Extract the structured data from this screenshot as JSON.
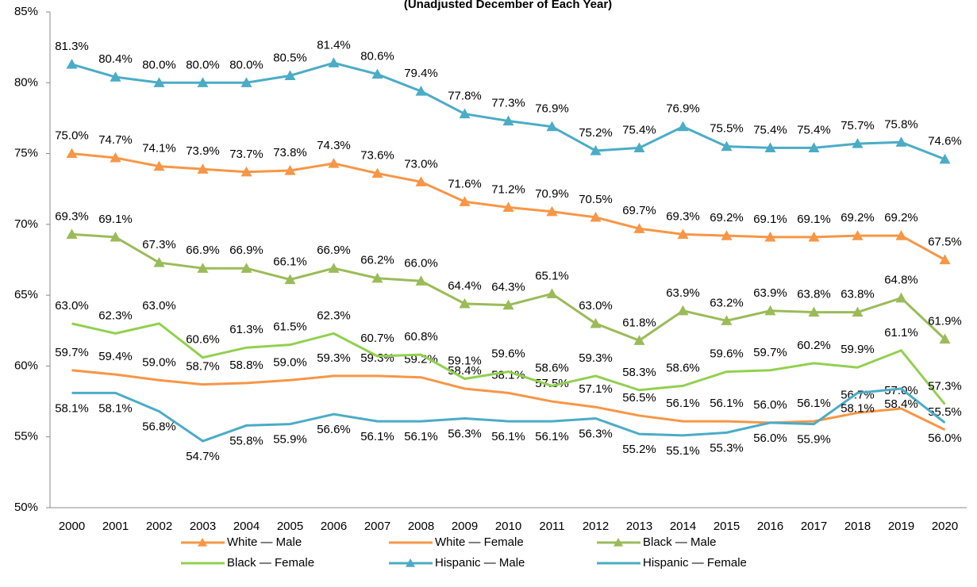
{
  "chart_data": {
    "type": "line",
    "subtitle": "(Unadjusted December of Each Year)",
    "categories": [
      "2000",
      "2001",
      "2002",
      "2003",
      "2004",
      "2005",
      "2006",
      "2007",
      "2008",
      "2009",
      "2010",
      "2011",
      "2012",
      "2013",
      "2014",
      "2015",
      "2016",
      "2017",
      "2018",
      "2019",
      "2020"
    ],
    "ylim": [
      50,
      85
    ],
    "yticks": [
      {
        "value": 50,
        "label": "50%"
      },
      {
        "value": 55,
        "label": "55%"
      },
      {
        "value": 60,
        "label": "60%"
      },
      {
        "value": 65,
        "label": "65%"
      },
      {
        "value": 70,
        "label": "70%"
      },
      {
        "value": 75,
        "label": "75%"
      },
      {
        "value": 80,
        "label": "80%"
      },
      {
        "value": 85,
        "label": "85%"
      }
    ],
    "grid": false,
    "series": [
      {
        "name": "White — Male",
        "color": "#F79646",
        "marker": "triangle",
        "values": [
          75.0,
          74.7,
          74.1,
          73.9,
          73.7,
          73.8,
          74.3,
          73.6,
          73.0,
          71.6,
          71.2,
          70.9,
          70.5,
          69.7,
          69.3,
          69.2,
          69.1,
          69.1,
          69.2,
          69.2,
          67.5
        ],
        "value_labels": [
          "75.0%",
          "74.7%",
          "74.1%",
          "73.9%",
          "73.7%",
          "73.8%",
          "74.3%",
          "73.6%",
          "73.0%",
          "71.6%",
          "71.2%",
          "70.9%",
          "70.5%",
          "69.7%",
          "69.3%",
          "69.2%",
          "69.1%",
          "69.1%",
          "69.2%",
          "69.2%",
          "67.5%"
        ]
      },
      {
        "name": "White — Female",
        "color": "#F79646",
        "marker": "none",
        "values": [
          59.7,
          59.4,
          59.0,
          58.7,
          58.8,
          59.0,
          59.3,
          59.3,
          59.2,
          58.4,
          58.1,
          57.5,
          57.1,
          56.5,
          56.1,
          56.1,
          56.0,
          56.1,
          56.7,
          57.0,
          55.5
        ],
        "value_labels": [
          "59.7%",
          "59.4%",
          "59.0%",
          "58.7%",
          "58.8%",
          "59.0%",
          "59.3%",
          "59.3%",
          "59.2%",
          "58.4%",
          "58.1%",
          "57.5%",
          "57.1%",
          "56.5%",
          "56.1%",
          "56.1%",
          "56.0%",
          "56.1%",
          "56.7%",
          "57.0%",
          "55.5%"
        ]
      },
      {
        "name": "Black — Male",
        "color": "#9BBB59",
        "marker": "triangle",
        "values": [
          69.3,
          69.1,
          67.3,
          66.9,
          66.9,
          66.1,
          66.9,
          66.2,
          66.0,
          64.4,
          64.3,
          65.1,
          63.0,
          61.8,
          63.9,
          63.2,
          63.9,
          63.8,
          63.8,
          64.8,
          61.9
        ],
        "value_labels": [
          "69.3%",
          "69.1%",
          "67.3%",
          "66.9%",
          "66.9%",
          "66.1%",
          "66.9%",
          "66.2%",
          "66.0%",
          "64.4%",
          "64.3%",
          "65.1%",
          "63.0%",
          "61.8%",
          "63.9%",
          "63.2%",
          "63.9%",
          "63.8%",
          "63.8%",
          "64.8%",
          "61.9%"
        ]
      },
      {
        "name": "Black — Female",
        "color": "#92D050",
        "marker": "none",
        "values": [
          63.0,
          62.3,
          63.0,
          60.6,
          61.3,
          61.5,
          62.3,
          60.7,
          60.8,
          59.1,
          59.6,
          58.6,
          59.3,
          58.3,
          58.6,
          59.6,
          59.7,
          60.2,
          59.9,
          61.1,
          57.3
        ],
        "value_labels": [
          "63.0%",
          "62.3%",
          "63.0%",
          "60.6%",
          "61.3%",
          "61.5%",
          "62.3%",
          "60.7%",
          "60.8%",
          "59.1%",
          "59.6%",
          "58.6%",
          "59.3%",
          "58.3%",
          "58.6%",
          "59.6%",
          "59.7%",
          "60.2%",
          "59.9%",
          "61.1%",
          "57.3%"
        ]
      },
      {
        "name": "Hispanic — Male",
        "color": "#4BACC6",
        "marker": "triangle",
        "values": [
          81.3,
          80.4,
          80.0,
          80.0,
          80.0,
          80.5,
          81.4,
          80.6,
          79.4,
          77.8,
          77.3,
          76.9,
          75.2,
          75.4,
          76.9,
          75.5,
          75.4,
          75.4,
          75.7,
          75.8,
          74.6
        ],
        "value_labels": [
          "81.3%",
          "80.4%",
          "80.0%",
          "80.0%",
          "80.0%",
          "80.5%",
          "81.4%",
          "80.6%",
          "79.4%",
          "77.8%",
          "77.3%",
          "76.9%",
          "75.2%",
          "75.4%",
          "76.9%",
          "75.5%",
          "75.4%",
          "75.4%",
          "75.7%",
          "75.8%",
          "74.6%"
        ]
      },
      {
        "name": "Hispanic — Female",
        "color": "#4BACC6",
        "marker": "none",
        "values": [
          58.1,
          58.1,
          56.8,
          54.7,
          55.8,
          55.9,
          56.6,
          56.1,
          56.1,
          56.3,
          56.1,
          56.1,
          56.3,
          55.2,
          55.1,
          55.3,
          56.0,
          55.9,
          58.1,
          58.4,
          56.0
        ],
        "value_labels": [
          "58.1%",
          "58.1%",
          "56.8%",
          "54.7%",
          "55.8%",
          "55.9%",
          "56.6%",
          "56.1%",
          "56.1%",
          "56.3%",
          "56.1%",
          "56.1%",
          "56.3%",
          "55.2%",
          "55.1%",
          "55.3%",
          "56.0%",
          "55.9%",
          "58.1%",
          "58.4%",
          "56.0%"
        ]
      }
    ]
  }
}
